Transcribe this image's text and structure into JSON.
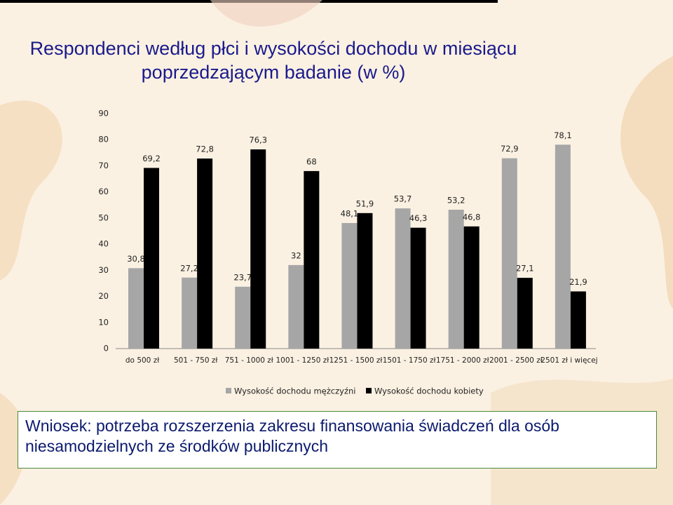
{
  "chart_data": {
    "type": "bar",
    "title": "Respondenci według płci i wysokości dochodu w miesiącu poprzedzającym badanie (w %)",
    "categories": [
      "do 500 zł",
      "501 - 750 zł",
      "751 - 1000 zł",
      "1001 - 1250 zł",
      "1251 - 1500 zł",
      "1501 - 1750 zł",
      "1751 - 2000 zł",
      "2001 - 2500 zł",
      "2501 zł i więcej"
    ],
    "series": [
      {
        "name": "Wysokość dochodu mężczyźni",
        "color": "#a6a6a6",
        "values": [
          30.8,
          27.2,
          23.7,
          32,
          48.1,
          53.7,
          53.2,
          72.9,
          78.1
        ],
        "value_labels": [
          "30,8",
          "27,2",
          "23,7",
          "32",
          "48,1",
          "53,7",
          "53,2",
          "72,9",
          "78,1"
        ]
      },
      {
        "name": "Wysokość dochodu kobiety",
        "color": "#000000",
        "values": [
          69.2,
          72.8,
          76.3,
          68,
          51.9,
          46.3,
          46.8,
          27.1,
          21.9
        ],
        "value_labels": [
          "69,2",
          "72,8",
          "76,3",
          "68",
          "51,9",
          "46,3",
          "46,8",
          "27,1",
          "21,9"
        ]
      }
    ],
    "ylim": [
      0,
      90
    ],
    "yticks": [
      0,
      10,
      20,
      30,
      40,
      50,
      60,
      70,
      80,
      90
    ],
    "grid": false,
    "legend": "bottom"
  },
  "conclusion": "Wniosek: potrzeba rozszerzenia zakresu finansowania świadczeń dla osób niesamodzielnych ze środków publicznych"
}
